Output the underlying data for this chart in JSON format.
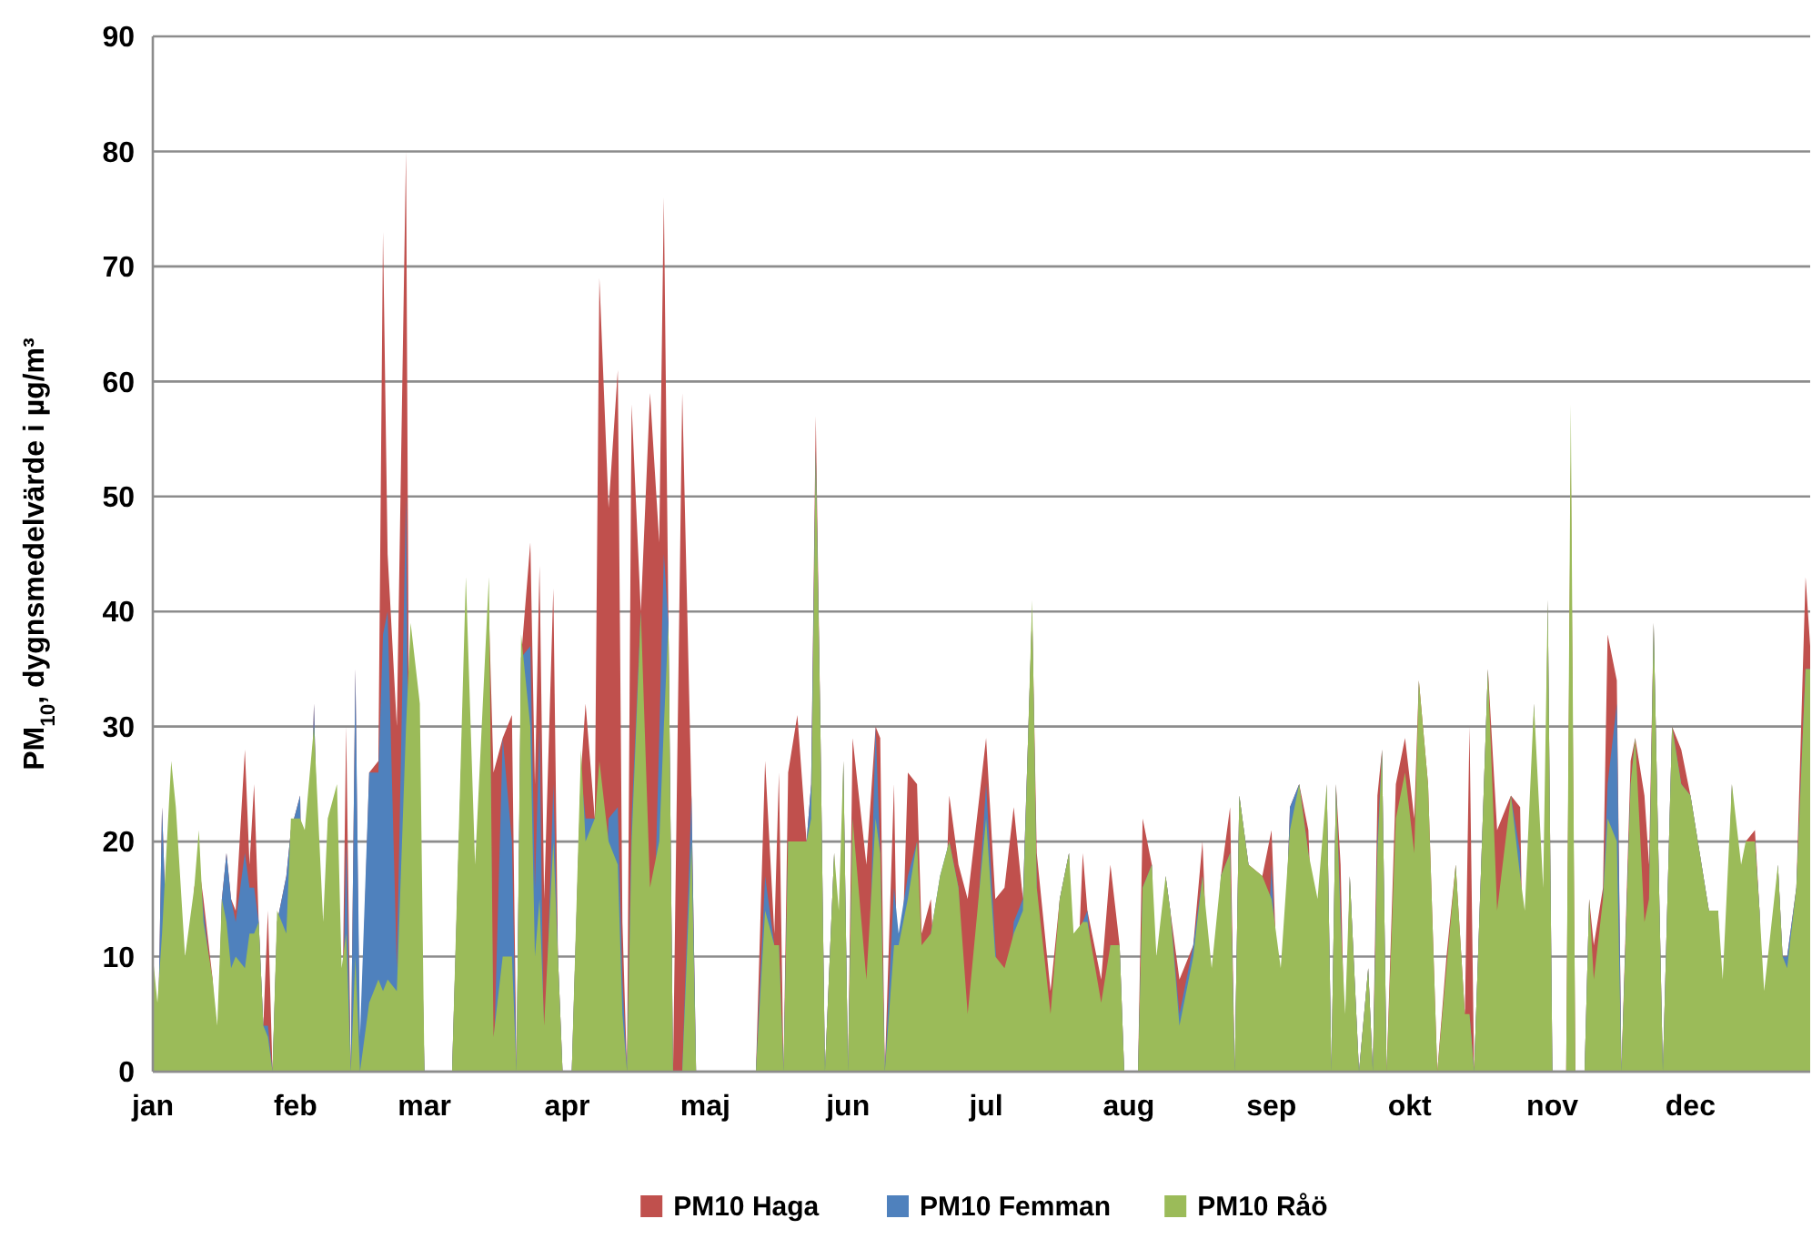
{
  "chart_data": {
    "type": "area",
    "ylabel": "PM$_{10}$, dygnsmedelvärde i µg/m³",
    "x": [
      "--01-01",
      "--01-02",
      "--01-03",
      "--01-05",
      "--01-06",
      "--01-08",
      "--01-10",
      "--01-11",
      "--01-12",
      "--01-14",
      "--01-15",
      "--01-16",
      "--01-17",
      "--01-18",
      "--01-19",
      "--01-21",
      "--01-22",
      "--01-23",
      "--01-24",
      "--01-25",
      "--01-26",
      "--01-27",
      "--01-28",
      "--01-30",
      "--01-31",
      "--02-02",
      "--02-03",
      "--02-05",
      "--02-07",
      "--02-08",
      "--02-10",
      "--02-11",
      "--02-12",
      "--02-13",
      "--02-14",
      "--02-15",
      "--02-17",
      "--02-19",
      "--02-20",
      "--02-21",
      "--02-23",
      "--02-25",
      "--02-26",
      "--02-28",
      "--03-01",
      "--03-07",
      "--03-10",
      "--03-12",
      "--03-15",
      "--03-16",
      "--03-18",
      "--03-20",
      "--03-21",
      "--03-22",
      "--03-24",
      "--03-25",
      "--03-26",
      "--03-27",
      "--03-29",
      "--03-30",
      "--03-31",
      "--04-02",
      "--04-04",
      "--04-05",
      "--04-07",
      "--04-08",
      "--04-10",
      "--04-12",
      "--04-13",
      "--04-14",
      "--04-15",
      "--04-17",
      "--04-19",
      "--04-21",
      "--04-22",
      "--04-23",
      "--04-24",
      "--04-26",
      "--04-28",
      "--04-29",
      "--05-12",
      "--05-14",
      "--05-16",
      "--05-17",
      "--05-18",
      "--05-19",
      "--05-21",
      "--05-23",
      "--05-24",
      "--05-25",
      "--05-26",
      "--05-27",
      "--05-29",
      "--05-30",
      "--05-31",
      "--06-01",
      "--06-02",
      "--06-05",
      "--06-07",
      "--06-08",
      "--06-09",
      "--06-11",
      "--06-12",
      "--06-14",
      "--06-16",
      "--06-17",
      "--06-19",
      "--06-21",
      "--06-23",
      "--06-25",
      "--06-27",
      "--07-01",
      "--07-03",
      "--07-05",
      "--07-07",
      "--07-09",
      "--07-11",
      "--07-12",
      "--07-15",
      "--07-17",
      "--07-19",
      "--07-20",
      "--07-22",
      "--07-23",
      "--07-26",
      "--07-28",
      "--07-30",
      "--07-31",
      "--08-03",
      "--08-04",
      "--08-06",
      "--08-07",
      "--08-09",
      "--08-10",
      "--08-12",
      "--08-15",
      "--08-17",
      "--08-19",
      "--08-21",
      "--08-23",
      "--08-24",
      "--08-25",
      "--08-27",
      "--08-30",
      "--09-01",
      "--09-03",
      "--09-05",
      "--09-07",
      "--09-09",
      "--09-11",
      "--09-13",
      "--09-14",
      "--09-15",
      "--09-16",
      "--09-17",
      "--09-18",
      "--09-20",
      "--09-22",
      "--09-23",
      "--09-24",
      "--09-25",
      "--09-26",
      "--09-28",
      "--09-30",
      "--10-02",
      "--10-03",
      "--10-05",
      "--10-07",
      "--10-09",
      "--10-11",
      "--10-13",
      "--10-14",
      "--10-15",
      "--10-18",
      "--10-20",
      "--10-23",
      "--10-25",
      "--10-26",
      "--10-28",
      "--10-30",
      "--10-31",
      "--11-01",
      "--11-04",
      "--11-05",
      "--11-06",
      "--11-08",
      "--11-09",
      "--11-10",
      "--11-12",
      "--11-13",
      "--11-15",
      "--11-16",
      "--11-18",
      "--11-19",
      "--11-21",
      "--11-22",
      "--11-23",
      "--11-25",
      "--11-27",
      "--11-29",
      "--12-01",
      "--12-03",
      "--12-05",
      "--12-07",
      "--12-08",
      "--12-10",
      "--12-12",
      "--12-13",
      "--12-15",
      "--12-16",
      "--12-17",
      "--12-20",
      "--12-21",
      "--12-22",
      "--12-24",
      "--12-26",
      "--12-27"
    ],
    "series": [
      {
        "name": "PM10 Haga",
        "color": "#c0504d",
        "values": [
          11,
          null,
          23,
          null,
          null,
          null,
          16,
          18,
          15,
          8,
          null,
          15,
          19,
          15,
          14,
          28,
          18,
          25,
          13,
          4,
          14,
          0,
          13,
          17,
          21,
          24,
          null,
          32,
          null,
          20,
          22,
          null,
          30,
          null,
          35,
          null,
          26,
          27,
          73,
          45,
          30,
          80,
          null,
          20,
          0,
          0,
          40,
          null,
          40,
          26,
          29,
          31,
          0,
          36,
          46,
          25,
          44,
          15,
          42,
          10,
          0,
          0,
          26,
          32,
          22,
          69,
          49,
          61,
          13,
          0,
          58,
          40,
          59,
          46,
          76,
          39,
          0,
          59,
          24,
          0,
          0,
          27,
          12,
          26,
          0,
          26,
          31,
          20,
          25,
          57,
          30,
          0,
          19,
          null,
          27,
          0,
          29,
          18,
          30,
          29,
          0,
          25,
          null,
          26,
          25,
          12,
          15,
          null,
          24,
          18,
          15,
          29,
          15,
          16,
          23,
          15,
          40,
          19,
          7,
          15,
          19,
          null,
          19,
          14,
          8,
          18,
          11,
          0,
          0,
          22,
          18,
          null,
          17,
          14,
          8,
          11,
          20,
          null,
          17,
          23,
          0,
          24,
          18,
          17,
          21,
          null,
          23,
          25,
          21,
          null,
          25,
          0,
          25,
          18,
          null,
          17,
          0,
          9,
          0,
          24,
          28,
          0,
          25,
          29,
          22,
          34,
          25,
          0,
          10,
          18,
          5,
          30,
          0,
          35,
          21,
          24,
          23,
          null,
          32,
          null,
          41,
          0,
          0,
          53,
          0,
          0,
          15,
          11,
          16,
          38,
          34,
          0,
          27,
          29,
          24,
          18,
          39,
          0,
          30,
          28,
          24,
          19,
          14,
          14,
          null,
          25,
          null,
          20,
          21,
          14,
          null,
          18,
          10,
          10,
          16,
          43,
          37
        ]
      },
      {
        "name": "PM10 Femman",
        "color": "#4f81bd",
        "values": [
          10,
          null,
          23,
          null,
          null,
          null,
          15,
          18,
          14,
          7,
          null,
          15,
          19,
          15,
          13,
          19,
          16,
          16,
          13,
          4,
          4,
          0,
          13,
          17,
          21,
          24,
          null,
          32,
          null,
          20,
          22,
          null,
          20,
          null,
          35,
          3,
          26,
          26,
          38,
          40,
          9,
          50,
          null,
          20,
          0,
          0,
          40,
          null,
          40,
          null,
          29,
          20,
          0,
          36,
          37,
          16,
          30,
          null,
          25,
          10,
          0,
          0,
          26,
          22,
          22,
          null,
          22,
          23,
          8,
          0,
          22,
          40,
          null,
          29,
          45,
          39,
          0,
          0,
          24,
          0,
          0,
          17,
          11,
          11,
          0,
          20,
          20,
          20,
          25,
          54,
          30,
          0,
          19,
          null,
          27,
          0,
          22,
          null,
          30,
          19,
          0,
          16,
          12,
          17,
          20,
          null,
          12,
          17,
          20,
          16,
          null,
          25,
          11,
          null,
          13,
          15,
          40,
          16,
          null,
          15,
          19,
          null,
          13,
          14,
          null,
          11,
          11,
          0,
          0,
          16,
          18,
          null,
          17,
          14,
          5,
          11,
          17,
          null,
          17,
          19,
          0,
          24,
          18,
          null,
          18,
          null,
          23,
          25,
          19,
          null,
          25,
          0,
          25,
          14,
          null,
          17,
          0,
          9,
          0,
          20,
          28,
          0,
          null,
          26,
          null,
          34,
          null,
          0,
          null,
          18,
          null,
          5,
          0,
          35,
          null,
          24,
          19,
          null,
          32,
          null,
          41,
          0,
          0,
          null,
          0,
          0,
          15,
          null,
          15,
          25,
          32,
          0,
          25,
          29,
          null,
          15,
          39,
          0,
          30,
          25,
          24,
          19,
          14,
          14,
          null,
          25,
          null,
          20,
          20,
          14,
          null,
          18,
          10,
          10,
          16,
          35,
          35
        ]
      },
      {
        "name": "PM10 Råö",
        "color": "#9bbb59",
        "values": [
          10,
          6,
          12,
          27,
          23,
          10,
          16,
          21,
          13,
          8,
          4,
          15,
          13,
          9,
          10,
          9,
          12,
          12,
          13,
          4,
          3,
          0,
          14,
          12,
          22,
          22,
          21,
          30,
          13,
          22,
          25,
          9,
          12,
          0,
          10,
          0,
          6,
          8,
          7,
          8,
          7,
          30,
          39,
          32,
          0,
          0,
          43,
          18,
          43,
          3,
          10,
          10,
          0,
          38,
          30,
          10,
          15,
          4,
          20,
          10,
          0,
          0,
          28,
          20,
          22,
          27,
          20,
          18,
          5,
          0,
          20,
          40,
          16,
          20,
          30,
          39,
          0,
          0,
          20,
          0,
          0,
          14,
          11,
          11,
          0,
          20,
          20,
          20,
          22,
          54,
          30,
          0,
          19,
          14,
          27,
          0,
          22,
          8,
          22,
          19,
          0,
          11,
          11,
          15,
          20,
          11,
          12,
          17,
          20,
          16,
          5,
          22,
          10,
          9,
          12,
          14,
          41,
          16,
          5,
          15,
          19,
          12,
          13,
          13,
          6,
          11,
          11,
          0,
          0,
          16,
          18,
          10,
          17,
          14,
          4,
          10,
          17,
          9,
          17,
          19,
          0,
          24,
          18,
          17,
          15,
          9,
          21,
          25,
          19,
          15,
          25,
          0,
          25,
          13,
          5,
          17,
          0,
          9,
          0,
          19,
          28,
          0,
          22,
          26,
          19,
          34,
          25,
          0,
          9,
          18,
          5,
          5,
          0,
          35,
          14,
          24,
          17,
          14,
          32,
          16,
          41,
          0,
          0,
          58,
          0,
          0,
          15,
          8,
          15,
          22,
          20,
          0,
          25,
          29,
          13,
          15,
          39,
          0,
          30,
          25,
          24,
          19,
          14,
          14,
          8,
          25,
          18,
          20,
          20,
          14,
          7,
          18,
          10,
          9,
          16,
          35,
          35
        ]
      }
    ],
    "xlim": [
      "--01-01",
      "--12-27"
    ],
    "xticks": [
      {
        "value": "--01-01",
        "label": "jan"
      },
      {
        "value": "--02-01",
        "label": "feb"
      },
      {
        "value": "--03-01",
        "label": "mar"
      },
      {
        "value": "--04-01",
        "label": "apr"
      },
      {
        "value": "--05-01",
        "label": "maj"
      },
      {
        "value": "--06-01",
        "label": "jun"
      },
      {
        "value": "--07-01",
        "label": "jul"
      },
      {
        "value": "--08-01",
        "label": "aug"
      },
      {
        "value": "--09-01",
        "label": "sep"
      },
      {
        "value": "--10-01",
        "label": "okt"
      },
      {
        "value": "--11-01",
        "label": "nov"
      },
      {
        "value": "--12-01",
        "label": "dec"
      }
    ],
    "ylim": [
      0,
      90
    ],
    "yticks": [
      0,
      10,
      20,
      30,
      40,
      50,
      60,
      70,
      80,
      90
    ],
    "grid": "y",
    "legend": "bottom"
  }
}
